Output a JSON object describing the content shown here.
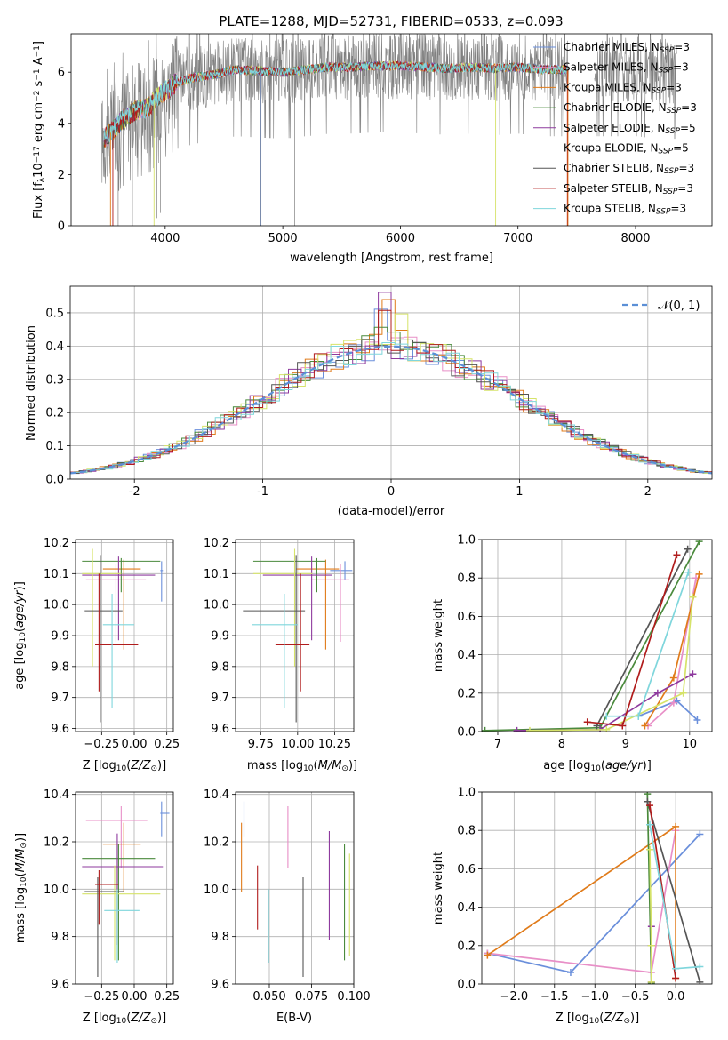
{
  "figure_title": "PLATE=1288, MJD=52731, FIBERID=0533, z=0.093",
  "colors": {
    "chabrier_miles": "#6a8fdb",
    "salpeter_miles": "#e88fc7",
    "kroupa_miles": "#e07b1a",
    "chabrier_elodie": "#4a8a3c",
    "salpeter_elodie": "#8e3a9e",
    "kroupa_elodie": "#d6e36a",
    "chabrier_stelib": "#555555",
    "salpeter_stelib": "#b01c1c",
    "kroupa_stelib": "#7fd6dc",
    "data": "#808080",
    "normal_dash": "#5b8fd6"
  },
  "chart_data": [
    {
      "id": "spectrum",
      "type": "line",
      "title": "PLATE=1288, MJD=52731, FIBERID=0533, z=0.093",
      "xlabel": "wavelength [Angstrom, rest frame]",
      "ylabel": "Flux [f_λ 10^-17 erg cm^-2 s^-1 A^-1]",
      "xlim": [
        3200,
        8650
      ],
      "ylim": [
        0,
        7.5
      ],
      "xticks": [
        4000,
        5000,
        6000,
        7000,
        8000
      ],
      "yticks": [
        0,
        2,
        4,
        6
      ],
      "grid": false,
      "legend_position": "right",
      "legend": [
        "Chabrier MILES, N_SSP=3",
        "Salpeter MILES, N_SSP=3",
        "Kroupa MILES, N_SSP=3",
        "Chabrier ELODIE, N_SSP=3",
        "Salpeter ELODIE, N_SSP=5",
        "Kroupa ELODIE, N_SSP=5",
        "Chabrier STELIB, N_SSP=3",
        "Salpeter STELIB, N_SSP=3",
        "Kroupa STELIB, N_SSP=3"
      ],
      "continuum": {
        "x": [
          3460,
          3550,
          3650,
          3750,
          3850,
          3950,
          4100,
          4250,
          4400,
          4600,
          4800,
          5000,
          5200,
          5400,
          5600,
          5800,
          6000,
          6200,
          6400,
          6600,
          6800,
          7000,
          7200,
          7400,
          7600,
          7800,
          8000,
          8200,
          8350
        ],
        "y": [
          3.3,
          3.7,
          4.2,
          4.5,
          4.6,
          5.1,
          5.6,
          5.8,
          5.9,
          6.1,
          6.05,
          6.0,
          6.1,
          6.2,
          6.2,
          6.25,
          6.25,
          6.2,
          6.15,
          6.2,
          6.15,
          6.2,
          6.1,
          6.1,
          6.1,
          6.1,
          6.1,
          6.0,
          6.0
        ]
      }
    },
    {
      "id": "residuals",
      "type": "line",
      "xlabel": "(data-model)/error",
      "ylabel": "Normed distribution",
      "xlim": [
        -2.5,
        2.5
      ],
      "ylim": [
        0,
        0.58
      ],
      "xticks": [
        -2,
        -1,
        0,
        1,
        2
      ],
      "yticks": [
        0.0,
        0.1,
        0.2,
        0.3,
        0.4,
        0.5
      ],
      "grid": true,
      "legend_position": "top-right",
      "legend": [
        "𝒩(0, 1)"
      ],
      "bin_width": 0.1
    },
    {
      "id": "age_vs_Z",
      "type": "scatter",
      "xlabel": "Z [log10(Z/Z⊙)]",
      "ylabel": "age  [log10(age/yr)]",
      "xlim": [
        -0.45,
        0.3
      ],
      "ylim": [
        9.59,
        10.21
      ],
      "xticks": [
        -0.25,
        0.0,
        0.25
      ],
      "xtick_labels": [
        "−0.25",
        "0.00",
        "0.25"
      ],
      "yticks": [
        9.6,
        9.7,
        9.8,
        9.9,
        10.0,
        10.1,
        10.2
      ],
      "grid": true,
      "points": [
        {
          "model": "chabrier_miles",
          "x": 0.21,
          "y": 10.11,
          "xerr": [
            0.01,
            0.01
          ],
          "yerr": [
            0.1,
            0.03
          ]
        },
        {
          "model": "salpeter_miles",
          "x": -0.14,
          "y": 10.08,
          "xerr": [
            0.23,
            0.23
          ],
          "yerr": [
            0.2,
            0.05
          ]
        },
        {
          "model": "kroupa_miles",
          "x": -0.08,
          "y": 10.115,
          "xerr": [
            0.16,
            0.13
          ],
          "yerr": [
            0.26,
            0.03
          ]
        },
        {
          "model": "chabrier_elodie",
          "x": -0.1,
          "y": 10.14,
          "xerr": [
            0.3,
            0.3
          ],
          "yerr": [
            0.1,
            0.01
          ]
        },
        {
          "model": "salpeter_elodie",
          "x": -0.12,
          "y": 10.095,
          "xerr": [
            0.28,
            0.28
          ],
          "yerr": [
            0.21,
            0.06
          ]
        },
        {
          "model": "kroupa_elodie",
          "x": -0.32,
          "y": 10.1,
          "xerr": [
            0.08,
            0.22
          ],
          "yerr": [
            0.3,
            0.08
          ]
        },
        {
          "model": "chabrier_stelib",
          "x": -0.26,
          "y": 9.98,
          "xerr": [
            0.12,
            0.17
          ],
          "yerr": [
            0.36,
            0.18
          ]
        },
        {
          "model": "salpeter_stelib",
          "x": -0.27,
          "y": 9.87,
          "xerr": [
            0.03,
            0.3
          ],
          "yerr": [
            0.15,
            0.23
          ]
        },
        {
          "model": "kroupa_stelib",
          "x": -0.17,
          "y": 9.935,
          "xerr": [
            0.07,
            0.17
          ],
          "yerr": [
            0.27,
            0.1
          ]
        }
      ]
    },
    {
      "id": "age_vs_mass",
      "type": "scatter",
      "xlabel": "mass [log10(M/M⊙)]",
      "xlim": [
        9.58,
        10.38
      ],
      "ylim": [
        9.59,
        10.21
      ],
      "xticks": [
        9.75,
        10.0,
        10.25
      ],
      "xtick_labels": [
        "9.75",
        "10.00",
        "10.25"
      ],
      "yticks": [
        9.6,
        9.7,
        9.8,
        9.9,
        10.0,
        10.1,
        10.2
      ],
      "grid": true,
      "points": [
        {
          "model": "chabrier_miles",
          "x": 10.32,
          "y": 10.11,
          "xerr": [
            0.1,
            0.05
          ],
          "yerr": [
            0.03,
            0.03
          ]
        },
        {
          "model": "salpeter_miles",
          "x": 10.29,
          "y": 10.08,
          "xerr": [
            0.2,
            0.06
          ],
          "yerr": [
            0.2,
            0.05
          ]
        },
        {
          "model": "kroupa_miles",
          "x": 10.19,
          "y": 10.115,
          "xerr": [
            0.2,
            0.09
          ],
          "yerr": [
            0.26,
            0.03
          ]
        },
        {
          "model": "chabrier_elodie",
          "x": 10.13,
          "y": 10.14,
          "xerr": [
            0.43,
            0.06
          ],
          "yerr": [
            0.1,
            0.01
          ]
        },
        {
          "model": "salpeter_elodie",
          "x": 10.095,
          "y": 10.095,
          "xerr": [
            0.33,
            0.14
          ],
          "yerr": [
            0.21,
            0.06
          ]
        },
        {
          "model": "kroupa_elodie",
          "x": 9.98,
          "y": 10.1,
          "xerr": [
            0.28,
            0.12
          ],
          "yerr": [
            0.3,
            0.08
          ]
        },
        {
          "model": "chabrier_stelib",
          "x": 9.99,
          "y": 9.98,
          "xerr": [
            0.36,
            0.06
          ],
          "yerr": [
            0.36,
            0.18
          ]
        },
        {
          "model": "salpeter_stelib",
          "x": 10.02,
          "y": 9.87,
          "xerr": [
            0.17,
            0.06
          ],
          "yerr": [
            0.15,
            0.23
          ]
        },
        {
          "model": "kroupa_stelib",
          "x": 9.91,
          "y": 9.935,
          "xerr": [
            0.22,
            0.09
          ],
          "yerr": [
            0.27,
            0.1
          ]
        }
      ]
    },
    {
      "id": "mass_weight_vs_age",
      "type": "line",
      "xlabel": "age  [log10(age/yr)]",
      "ylabel": "mass weight",
      "xlim": [
        6.75,
        10.35
      ],
      "ylim": [
        0,
        1.0
      ],
      "xticks": [
        7,
        8,
        9,
        10
      ],
      "yticks": [
        0.0,
        0.2,
        0.4,
        0.6,
        0.8,
        1.0
      ],
      "grid": true,
      "series": [
        {
          "model": "chabrier_miles",
          "points": [
            [
              9.2,
              0.08
            ],
            [
              9.8,
              0.16
            ],
            [
              10.12,
              0.06
            ]
          ]
        },
        {
          "model": "salpeter_miles",
          "points": [
            [
              9.35,
              0.03
            ],
            [
              9.75,
              0.15
            ],
            [
              10.1,
              0.8
            ]
          ]
        },
        {
          "model": "kroupa_miles",
          "points": [
            [
              9.3,
              0.03
            ],
            [
              9.75,
              0.28
            ],
            [
              10.15,
              0.82
            ]
          ]
        },
        {
          "model": "chabrier_elodie",
          "points": [
            [
              6.8,
              0.005
            ],
            [
              8.6,
              0.02
            ],
            [
              10.15,
              0.99
            ]
          ]
        },
        {
          "model": "salpeter_elodie",
          "points": [
            [
              7.3,
              0.005
            ],
            [
              8.6,
              0.01
            ],
            [
              9.5,
              0.2
            ],
            [
              10.05,
              0.3
            ]
          ]
        },
        {
          "model": "kroupa_elodie",
          "points": [
            [
              7.5,
              0.005
            ],
            [
              8.7,
              0.01
            ],
            [
              9.9,
              0.2
            ],
            [
              10.05,
              0.7
            ]
          ]
        },
        {
          "model": "chabrier_stelib",
          "points": [
            [
              8.55,
              0.03
            ],
            [
              9.97,
              0.95
            ]
          ]
        },
        {
          "model": "salpeter_stelib",
          "points": [
            [
              8.4,
              0.05
            ],
            [
              8.95,
              0.03
            ],
            [
              9.8,
              0.92
            ]
          ]
        },
        {
          "model": "kroupa_stelib",
          "points": [
            [
              8.7,
              0.08
            ],
            [
              9.2,
              0.08
            ],
            [
              9.98,
              0.83
            ]
          ]
        }
      ]
    },
    {
      "id": "mass_vs_Z",
      "type": "scatter",
      "xlabel": "Z [log10(Z/Z⊙)]",
      "ylabel": "mass [log10(M/M⊙)]",
      "xlim": [
        -0.45,
        0.3
      ],
      "ylim": [
        9.6,
        10.41
      ],
      "xticks": [
        -0.25,
        0.0,
        0.25
      ],
      "xtick_labels": [
        "−0.25",
        "0.00",
        "0.25"
      ],
      "yticks": [
        9.6,
        9.8,
        10.0,
        10.2,
        10.4
      ],
      "grid": true,
      "points": [
        {
          "model": "chabrier_miles",
          "x": 0.21,
          "y": 10.32,
          "xerr": [
            0.01,
            0.06
          ],
          "yerr": [
            0.1,
            0.05
          ]
        },
        {
          "model": "salpeter_miles",
          "x": -0.1,
          "y": 10.29,
          "xerr": [
            0.27,
            0.2
          ],
          "yerr": [
            0.2,
            0.06
          ]
        },
        {
          "model": "kroupa_miles",
          "x": -0.08,
          "y": 10.19,
          "xerr": [
            0.16,
            0.13
          ],
          "yerr": [
            0.2,
            0.09
          ]
        },
        {
          "model": "chabrier_elodie",
          "x": -0.12,
          "y": 10.13,
          "xerr": [
            0.28,
            0.28
          ],
          "yerr": [
            0.43,
            0.06
          ]
        },
        {
          "model": "salpeter_elodie",
          "x": -0.13,
          "y": 10.095,
          "xerr": [
            0.27,
            0.35
          ],
          "yerr": [
            0.33,
            0.14
          ]
        },
        {
          "model": "kroupa_elodie",
          "x": -0.15,
          "y": 9.98,
          "xerr": [
            0.25,
            0.35
          ],
          "yerr": [
            0.28,
            0.12
          ]
        },
        {
          "model": "chabrier_stelib",
          "x": -0.28,
          "y": 9.99,
          "xerr": [
            0.1,
            0.2
          ],
          "yerr": [
            0.36,
            0.06
          ]
        },
        {
          "model": "salpeter_stelib",
          "x": -0.27,
          "y": 10.02,
          "xerr": [
            0.03,
            0.15
          ],
          "yerr": [
            0.17,
            0.06
          ]
        },
        {
          "model": "kroupa_stelib",
          "x": -0.13,
          "y": 9.91,
          "xerr": [
            0.1,
            0.17
          ],
          "yerr": [
            0.22,
            0.09
          ]
        }
      ]
    },
    {
      "id": "mass_vs_EBV",
      "type": "scatter",
      "xlabel": "E(B-V)",
      "xlim": [
        0.03,
        0.1
      ],
      "ylim": [
        9.6,
        10.41
      ],
      "xticks": [
        0.05,
        0.075,
        0.1
      ],
      "xtick_labels": [
        "0.050",
        "0.075",
        "0.100"
      ],
      "yticks": [
        9.6,
        9.8,
        10.0,
        10.2,
        10.4
      ],
      "grid": true,
      "points": [
        {
          "model": "chabrier_miles",
          "x": 0.035,
          "y": 10.32,
          "xerr": [
            0,
            0
          ],
          "yerr": [
            0.1,
            0.05
          ]
        },
        {
          "model": "kroupa_miles",
          "x": 0.0335,
          "y": 10.19,
          "xerr": [
            0,
            0
          ],
          "yerr": [
            0.2,
            0.09
          ]
        },
        {
          "model": "salpeter_stelib",
          "x": 0.043,
          "y": 10.02,
          "xerr": [
            0,
            0
          ],
          "yerr": [
            0.19,
            0.08
          ]
        },
        {
          "model": "kroupa_stelib",
          "x": 0.0495,
          "y": 9.91,
          "xerr": [
            0,
            0
          ],
          "yerr": [
            0.22,
            0.09
          ]
        },
        {
          "model": "salpeter_miles",
          "x": 0.061,
          "y": 10.29,
          "xerr": [
            0,
            0
          ],
          "yerr": [
            0.2,
            0.06
          ]
        },
        {
          "model": "chabrier_stelib",
          "x": 0.07,
          "y": 9.99,
          "xerr": [
            0,
            0
          ],
          "yerr": [
            0.36,
            0.06
          ]
        },
        {
          "model": "salpeter_elodie",
          "x": 0.0855,
          "y": 10.095,
          "xerr": [
            0,
            0
          ],
          "yerr": [
            0.31,
            0.15
          ]
        },
        {
          "model": "chabrier_elodie",
          "x": 0.0945,
          "y": 10.13,
          "xerr": [
            0,
            0
          ],
          "yerr": [
            0.43,
            0.06
          ]
        },
        {
          "model": "kroupa_elodie",
          "x": 0.0975,
          "y": 9.98,
          "xerr": [
            0,
            0
          ],
          "yerr": [
            0.26,
            0.17
          ]
        }
      ]
    },
    {
      "id": "mass_weight_vs_Z",
      "type": "line",
      "xlabel": "Z [log10(Z/Z⊙)]",
      "ylabel": "mass weight",
      "xlim": [
        -2.4,
        0.45
      ],
      "ylim": [
        0,
        1.0
      ],
      "xticks": [
        -2.0,
        -1.5,
        -1.0,
        -0.5,
        0.0
      ],
      "xtick_labels": [
        "−2.0",
        "−1.5",
        "−1.0",
        "−0.5",
        "0.0"
      ],
      "yticks": [
        0.0,
        0.2,
        0.4,
        0.6,
        0.8,
        1.0
      ],
      "grid": true,
      "series": [
        {
          "model": "chabrier_miles",
          "points": [
            [
              -2.33,
              0.16
            ],
            [
              -1.3,
              0.06
            ],
            [
              0.3,
              0.78
            ]
          ]
        },
        {
          "model": "salpeter_miles",
          "points": [
            [
              -2.33,
              0.16
            ],
            [
              -0.3,
              0.06
            ],
            [
              0.0,
              0.8
            ]
          ]
        },
        {
          "model": "kroupa_miles",
          "points": [
            [
              0.0,
              0.03
            ],
            [
              0.0,
              0.82
            ],
            [
              -2.33,
              0.15
            ]
          ]
        },
        {
          "model": "chabrier_elodie",
          "points": [
            [
              -0.35,
              0.99
            ],
            [
              -0.3,
              0.005
            ]
          ]
        },
        {
          "model": "salpeter_elodie",
          "points": [
            [
              -0.3,
              0.3
            ],
            [
              -0.3,
              0.2
            ],
            [
              -0.3,
              0.01
            ]
          ]
        },
        {
          "model": "kroupa_elodie",
          "points": [
            [
              -0.32,
              0.7
            ],
            [
              -0.3,
              0.2
            ],
            [
              -0.3,
              0.01
            ]
          ]
        },
        {
          "model": "chabrier_stelib",
          "points": [
            [
              -0.35,
              0.95
            ],
            [
              0.3,
              0.01
            ]
          ]
        },
        {
          "model": "salpeter_stelib",
          "points": [
            [
              -0.32,
              0.93
            ],
            [
              0.0,
              0.03
            ]
          ]
        },
        {
          "model": "kroupa_stelib",
          "points": [
            [
              -0.32,
              0.83
            ],
            [
              0.0,
              0.08
            ],
            [
              0.3,
              0.09
            ]
          ]
        }
      ]
    }
  ]
}
